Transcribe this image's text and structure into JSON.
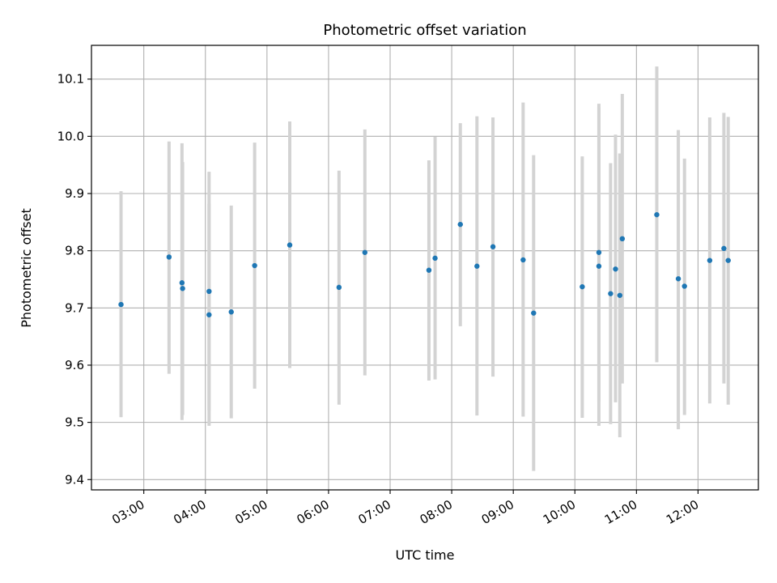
{
  "chart_data": {
    "type": "scatter",
    "title": "Photometric offset variation",
    "xlabel": "UTC time",
    "ylabel": "Photometric offset",
    "x_unit": "UTC time (decimal hours)",
    "xlim": [
      2.15,
      12.98
    ],
    "ylim": [
      9.382,
      10.159
    ],
    "x_ticks": [
      {
        "value": 3,
        "label": "03:00"
      },
      {
        "value": 4,
        "label": "04:00"
      },
      {
        "value": 5,
        "label": "05:00"
      },
      {
        "value": 6,
        "label": "06:00"
      },
      {
        "value": 7,
        "label": "07:00"
      },
      {
        "value": 8,
        "label": "08:00"
      },
      {
        "value": 9,
        "label": "09:00"
      },
      {
        "value": 10,
        "label": "10:00"
      },
      {
        "value": 11,
        "label": "11:00"
      },
      {
        "value": 12,
        "label": "12:00"
      }
    ],
    "y_ticks": [
      {
        "value": 9.4,
        "label": "9.4"
      },
      {
        "value": 9.5,
        "label": "9.5"
      },
      {
        "value": 9.6,
        "label": "9.6"
      },
      {
        "value": 9.7,
        "label": "9.7"
      },
      {
        "value": 9.8,
        "label": "9.8"
      },
      {
        "value": 9.9,
        "label": "9.9"
      },
      {
        "value": 10.0,
        "label": "10.0"
      },
      {
        "value": 10.1,
        "label": "10.1"
      }
    ],
    "grid": true,
    "marker_color": "#1f77b4",
    "errorbar_color": "#d3d3d3",
    "points": [
      {
        "x": 2.63,
        "y": 9.706,
        "ylow": 9.509,
        "yhigh": 9.904
      },
      {
        "x": 3.41,
        "y": 9.789,
        "ylow": 9.585,
        "yhigh": 9.991
      },
      {
        "x": 3.62,
        "y": 9.744,
        "ylow": 9.504,
        "yhigh": 9.988
      },
      {
        "x": 3.63,
        "y": 9.734,
        "ylow": 9.513,
        "yhigh": 9.955
      },
      {
        "x": 4.06,
        "y": 9.729,
        "ylow": 9.521,
        "yhigh": 9.938
      },
      {
        "x": 4.06,
        "y": 9.688,
        "ylow": 9.494,
        "yhigh": 9.882
      },
      {
        "x": 4.42,
        "y": 9.693,
        "ylow": 9.507,
        "yhigh": 9.879
      },
      {
        "x": 4.8,
        "y": 9.774,
        "ylow": 9.559,
        "yhigh": 9.989
      },
      {
        "x": 5.37,
        "y": 9.81,
        "ylow": 9.595,
        "yhigh": 10.026
      },
      {
        "x": 6.17,
        "y": 9.736,
        "ylow": 9.531,
        "yhigh": 9.94
      },
      {
        "x": 6.59,
        "y": 9.797,
        "ylow": 9.582,
        "yhigh": 10.012
      },
      {
        "x": 7.63,
        "y": 9.766,
        "ylow": 9.573,
        "yhigh": 9.958
      },
      {
        "x": 7.73,
        "y": 9.787,
        "ylow": 9.575,
        "yhigh": 9.999
      },
      {
        "x": 8.14,
        "y": 9.846,
        "ylow": 9.668,
        "yhigh": 10.023
      },
      {
        "x": 8.41,
        "y": 9.773,
        "ylow": 9.512,
        "yhigh": 10.035
      },
      {
        "x": 8.67,
        "y": 9.807,
        "ylow": 9.58,
        "yhigh": 10.033
      },
      {
        "x": 9.16,
        "y": 9.784,
        "ylow": 9.51,
        "yhigh": 10.059
      },
      {
        "x": 9.33,
        "y": 9.691,
        "ylow": 9.415,
        "yhigh": 9.967
      },
      {
        "x": 10.12,
        "y": 9.737,
        "ylow": 9.508,
        "yhigh": 9.965
      },
      {
        "x": 10.39,
        "y": 9.797,
        "ylow": 9.537,
        "yhigh": 10.057
      },
      {
        "x": 10.39,
        "y": 9.773,
        "ylow": 9.494,
        "yhigh": 10.05
      },
      {
        "x": 10.58,
        "y": 9.725,
        "ylow": 9.497,
        "yhigh": 9.953
      },
      {
        "x": 10.66,
        "y": 9.768,
        "ylow": 9.535,
        "yhigh": 10.003
      },
      {
        "x": 10.73,
        "y": 9.722,
        "ylow": 9.474,
        "yhigh": 9.97
      },
      {
        "x": 10.77,
        "y": 9.821,
        "ylow": 9.568,
        "yhigh": 10.074
      },
      {
        "x": 11.33,
        "y": 9.863,
        "ylow": 9.605,
        "yhigh": 10.122
      },
      {
        "x": 11.68,
        "y": 9.751,
        "ylow": 9.488,
        "yhigh": 10.011
      },
      {
        "x": 11.78,
        "y": 9.738,
        "ylow": 9.513,
        "yhigh": 9.961
      },
      {
        "x": 12.19,
        "y": 9.783,
        "ylow": 9.533,
        "yhigh": 10.033
      },
      {
        "x": 12.42,
        "y": 9.804,
        "ylow": 9.568,
        "yhigh": 10.041
      },
      {
        "x": 12.49,
        "y": 9.783,
        "ylow": 9.531,
        "yhigh": 10.034
      }
    ]
  }
}
